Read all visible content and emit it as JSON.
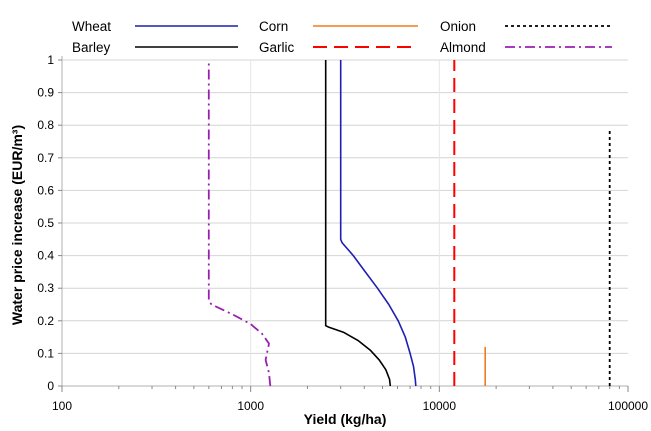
{
  "chart_data": {
    "type": "line",
    "xlabel": "Yield (kg/ha)",
    "ylabel": "Water price increase (EUR/m³)",
    "xscale": "log",
    "xlim": [
      100,
      100000
    ],
    "ylim": [
      0,
      1
    ],
    "xticks": [
      {
        "value": 100,
        "label": "100"
      },
      {
        "value": 1000,
        "label": "1000"
      },
      {
        "value": 10000,
        "label": "10000"
      },
      {
        "value": 100000,
        "label": "100000"
      }
    ],
    "yticks": [
      {
        "value": 0,
        "label": "0"
      },
      {
        "value": 0.1,
        "label": "0.1"
      },
      {
        "value": 0.2,
        "label": "0.2"
      },
      {
        "value": 0.3,
        "label": "0.3"
      },
      {
        "value": 0.4,
        "label": "0.4"
      },
      {
        "value": 0.5,
        "label": "0.5"
      },
      {
        "value": 0.6,
        "label": "0.6"
      },
      {
        "value": 0.7,
        "label": "0.7"
      },
      {
        "value": 0.8,
        "label": "0.8"
      },
      {
        "value": 0.9,
        "label": "0.9"
      },
      {
        "value": 1,
        "label": "1"
      }
    ],
    "grid": "horizontal major gridlines at y ticks; vertical gridlines at x decades",
    "legend_position": "top, above plot, 3 columns x 2 rows",
    "series": [
      {
        "name": "Wheat",
        "color": "#1f1fb4",
        "dash": "solid",
        "points": [
          [
            7500,
            0
          ],
          [
            7460,
            0.02
          ],
          [
            7300,
            0.06
          ],
          [
            7000,
            0.1
          ],
          [
            6600,
            0.15
          ],
          [
            6050,
            0.2
          ],
          [
            5400,
            0.25
          ],
          [
            4700,
            0.3
          ],
          [
            4050,
            0.35
          ],
          [
            3500,
            0.4
          ],
          [
            3050,
            0.44
          ],
          [
            3000,
            0.45
          ],
          [
            3000,
            1
          ]
        ]
      },
      {
        "name": "Barley",
        "color": "#000000",
        "dash": "solid",
        "points": [
          [
            5500,
            0
          ],
          [
            5450,
            0.02
          ],
          [
            5200,
            0.05
          ],
          [
            4800,
            0.08
          ],
          [
            4300,
            0.11
          ],
          [
            3700,
            0.14
          ],
          [
            3100,
            0.165
          ],
          [
            2600,
            0.18
          ],
          [
            2500,
            0.185
          ],
          [
            2500,
            1
          ]
        ]
      },
      {
        "name": "Corn",
        "color": "#f07b1a",
        "dash": "solid",
        "points": [
          [
            17500,
            0
          ],
          [
            17500,
            0.12
          ]
        ]
      },
      {
        "name": "Garlic",
        "color": "#ff0000",
        "dash": "long-dash",
        "points": [
          [
            12000,
            0
          ],
          [
            12000,
            1
          ]
        ]
      },
      {
        "name": "Onion",
        "color": "#000000",
        "dash": "dotted",
        "points": [
          [
            80000,
            0
          ],
          [
            80000,
            0.79
          ]
        ]
      },
      {
        "name": "Almond",
        "color": "#9b1fb4",
        "dash": "dash-dot",
        "points": [
          [
            1270,
            0
          ],
          [
            1250,
            0.04
          ],
          [
            1200,
            0.08
          ],
          [
            1250,
            0.13
          ],
          [
            1150,
            0.16
          ],
          [
            1000,
            0.19
          ],
          [
            800,
            0.22
          ],
          [
            620,
            0.25
          ],
          [
            600,
            0.26
          ],
          [
            600,
            1
          ]
        ]
      }
    ]
  }
}
